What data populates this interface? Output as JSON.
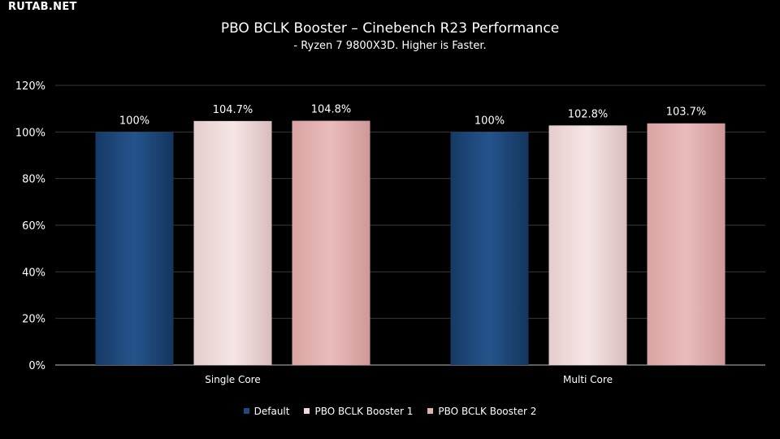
{
  "watermark": "RUTAB.NET",
  "chart_data": {
    "type": "bar",
    "title": "PBO BCLK Booster – Cinebench R23 Performance",
    "subtitle": "- Ryzen 7 9800X3D. Higher is Faster.",
    "categories": [
      "Single Core",
      "Multi Core"
    ],
    "series": [
      {
        "name": "Default",
        "values": [
          100,
          100
        ],
        "labels": [
          "100%",
          "100%"
        ],
        "color": "#1f4a7e"
      },
      {
        "name": "PBO BCLK Booster 1",
        "values": [
          104.7,
          102.8
        ],
        "labels": [
          "104.7%",
          "102.8%"
        ],
        "color": "#f0dada"
      },
      {
        "name": "PBO BCLK Booster 2",
        "values": [
          104.8,
          103.7
        ],
        "labels": [
          "104.8%",
          "103.7%"
        ],
        "color": "#e3b0b0"
      }
    ],
    "ylim": [
      0,
      120
    ],
    "yticks": [
      0,
      20,
      40,
      60,
      80,
      100,
      120
    ],
    "ytick_labels": [
      "0%",
      "20%",
      "40%",
      "60%",
      "80%",
      "100%",
      "120%"
    ],
    "grid": true,
    "legend_position": "bottom"
  }
}
